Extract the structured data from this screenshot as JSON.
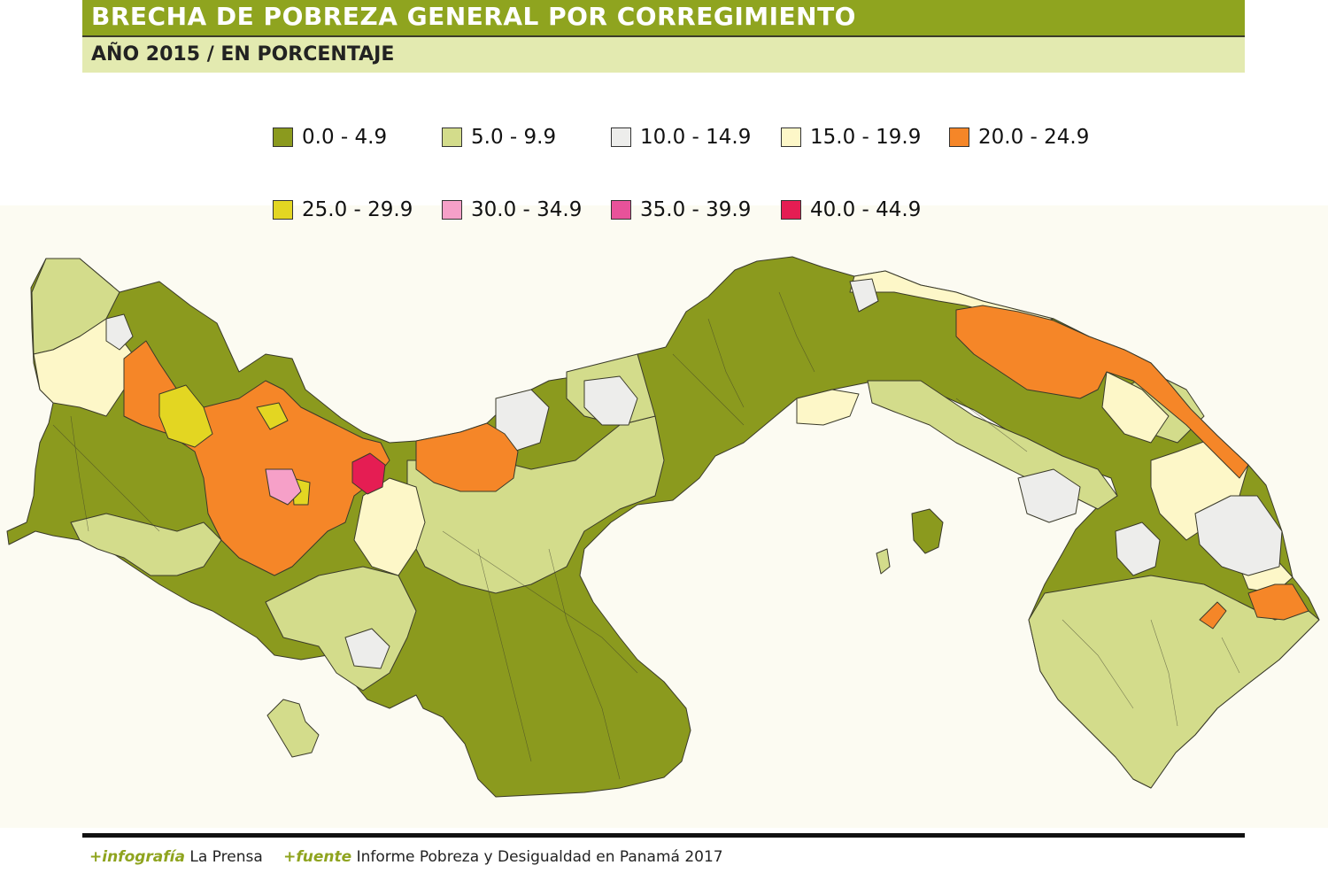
{
  "title": "BRECHA DE POBREZA GENERAL POR CORREGIMIENTO",
  "subtitle": "AÑO 2015 / EN PORCENTAJE",
  "legend": [
    {
      "label": "0.0 - 4.9",
      "color": "#8b9a1e"
    },
    {
      "label": "5.0 - 9.9",
      "color": "#d3dc8b"
    },
    {
      "label": "10.0 - 14.9",
      "color": "#ededeb"
    },
    {
      "label": "15.0 - 19.9",
      "color": "#fdf7c8"
    },
    {
      "label": "20.0 - 24.9",
      "color": "#f58628"
    },
    {
      "label": "25.0 - 29.9",
      "color": "#e3d622"
    },
    {
      "label": "30.0 - 34.9",
      "color": "#f6a0c8"
    },
    {
      "label": "35.0 - 39.9",
      "color": "#e8529a"
    },
    {
      "label": "40.0 - 44.9",
      "color": "#e51d53"
    }
  ],
  "footer": {
    "credit_prefix": "+infografía",
    "credit_name": "La Prensa",
    "source_prefix": "+fuente",
    "source_text": "Informe Pobreza y Desigualdad en Panamá 2017"
  },
  "colors": {
    "title_bar": "#8fa41f",
    "subtitle_bar": "#e3eab0",
    "background": "#fcfbf2"
  }
}
